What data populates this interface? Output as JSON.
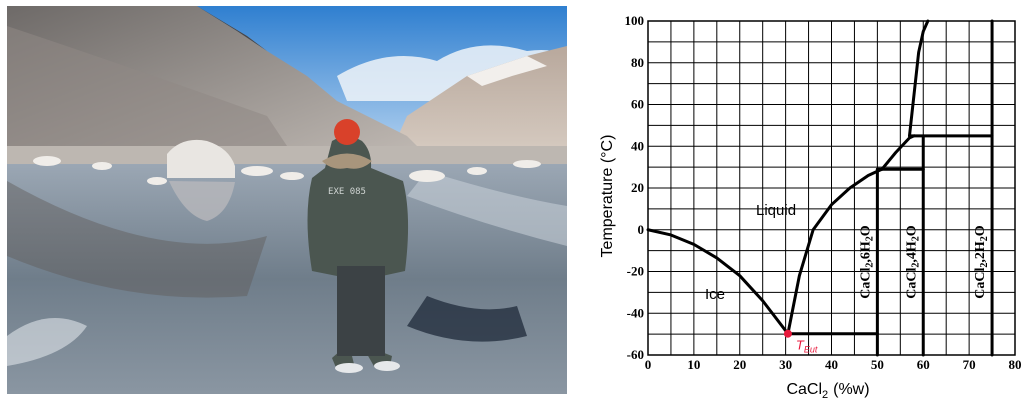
{
  "photo": {
    "jacket_lettering": "EXE 085",
    "colors": {
      "sky_top": "#2f7fd0",
      "sky_bottom": "#bfd9f2",
      "water": "#7e8a96",
      "jacket": "#4b5650",
      "hat": "#d9412a"
    }
  },
  "diagram": {
    "ylabel": "Temperature (°C)",
    "xlabel_base": "CaCl",
    "xlabel_sub": "2",
    "xlabel_unit": "(%w)",
    "x_ticks": [
      "0",
      "10",
      "20",
      "30",
      "40",
      "50",
      "60",
      "70",
      "80"
    ],
    "y_ticks": [
      "-60",
      "-40",
      "-20",
      "0",
      "20",
      "40",
      "60",
      "80",
      "100"
    ],
    "regions": {
      "liquid": "Liquid",
      "ice": "Ice"
    },
    "eutectic": {
      "label_main": "T",
      "label_sub": "Eut",
      "x": 30.5,
      "y": -49.8,
      "color": "#e8193c"
    },
    "phases": [
      {
        "formula": "CaCl",
        "sub": "2",
        "water": ",6H",
        "water_sub": "2",
        "tail": "O",
        "x": 50
      },
      {
        "formula": "CaCl",
        "sub": "2",
        "water": ",4H",
        "water_sub": "2",
        "tail": "O",
        "x": 60
      },
      {
        "formula": "CaCl",
        "sub": "2",
        "water": ",2H",
        "water_sub": "2",
        "tail": "O",
        "x": 75
      }
    ]
  },
  "chart_data": {
    "type": "line",
    "xlabel": "CaCl2 (%w)",
    "ylabel": "Temperature (°C)",
    "xlim": [
      0,
      80
    ],
    "ylim": [
      -60,
      100
    ],
    "grid": true,
    "series": [
      {
        "x": [
          0,
          5,
          10,
          15,
          20,
          25,
          30.5
        ],
        "y": [
          0,
          -2.5,
          -7,
          -13.5,
          -22,
          -34,
          -49.8
        ]
      },
      {
        "x": [
          30.5,
          33,
          36,
          40,
          44,
          48,
          50,
          51
        ],
        "y": [
          -49.8,
          -22,
          0,
          12,
          20,
          26,
          28,
          29
        ]
      },
      {
        "x": [
          51,
          54,
          57,
          58
        ],
        "y": [
          29,
          37,
          44,
          45
        ]
      },
      {
        "x": [
          57,
          58,
          59,
          60,
          61
        ],
        "y": [
          45,
          65,
          85,
          95,
          100
        ]
      },
      {
        "x": [
          30.5,
          50
        ],
        "y": [
          -49.8,
          -49.8
        ]
      },
      {
        "x": [
          50,
          60
        ],
        "y": [
          29,
          29
        ]
      },
      {
        "x": [
          57,
          75
        ],
        "y": [
          45,
          45
        ]
      },
      {
        "x": [
          50,
          50
        ],
        "y": [
          -60,
          29
        ]
      },
      {
        "x": [
          60,
          60
        ],
        "y": [
          -60,
          45
        ]
      },
      {
        "x": [
          75,
          75
        ],
        "y": [
          -60,
          100
        ]
      }
    ]
  }
}
